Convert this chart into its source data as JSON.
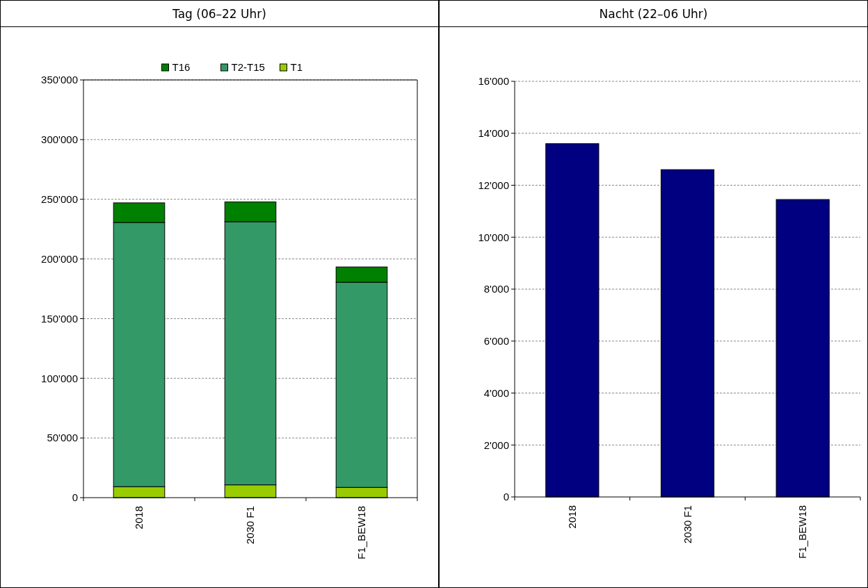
{
  "chart_data": [
    {
      "type": "bar",
      "title": "Tag (06–22 Uhr)",
      "categories": [
        "2018",
        "2030 F1",
        "F1_BEW18"
      ],
      "stacked": true,
      "legend": "top",
      "grid": "y",
      "ylim": [
        0,
        350000
      ],
      "yticks": [
        {
          "value": 0,
          "label": "0"
        },
        {
          "value": 50000,
          "label": "50'000"
        },
        {
          "value": 100000,
          "label": "100'000"
        },
        {
          "value": 150000,
          "label": "150'000"
        },
        {
          "value": 200000,
          "label": "200'000"
        },
        {
          "value": 250000,
          "label": "250'000"
        },
        {
          "value": 300000,
          "label": "300'000"
        },
        {
          "value": 350000,
          "label": "350'000"
        }
      ],
      "series": [
        {
          "name": "T1",
          "color": "#99cc00",
          "values": [
            9200,
            10700,
            8600
          ]
        },
        {
          "name": "T2-T15",
          "color": "#339966",
          "values": [
            221300,
            220500,
            171900
          ]
        },
        {
          "name": "T16",
          "color": "#008000",
          "values": [
            16500,
            16600,
            12800
          ]
        }
      ]
    },
    {
      "type": "bar",
      "title": "Nacht (22–06 Uhr)",
      "categories": [
        "2018",
        "2030 F1",
        "F1_BEW18"
      ],
      "grid": "y",
      "ylim": [
        0,
        16000
      ],
      "yticks": [
        {
          "value": 0,
          "label": "0"
        },
        {
          "value": 2000,
          "label": "2'000"
        },
        {
          "value": 4000,
          "label": "4'000"
        },
        {
          "value": 6000,
          "label": "6'000"
        },
        {
          "value": 8000,
          "label": "8'000"
        },
        {
          "value": 10000,
          "label": "10'000"
        },
        {
          "value": 12000,
          "label": "12'000"
        },
        {
          "value": 14000,
          "label": "14'000"
        },
        {
          "value": 16000,
          "label": "16'000"
        }
      ],
      "series": [
        {
          "color": "#000080",
          "values": [
            13600,
            12600,
            11450
          ]
        }
      ]
    }
  ]
}
